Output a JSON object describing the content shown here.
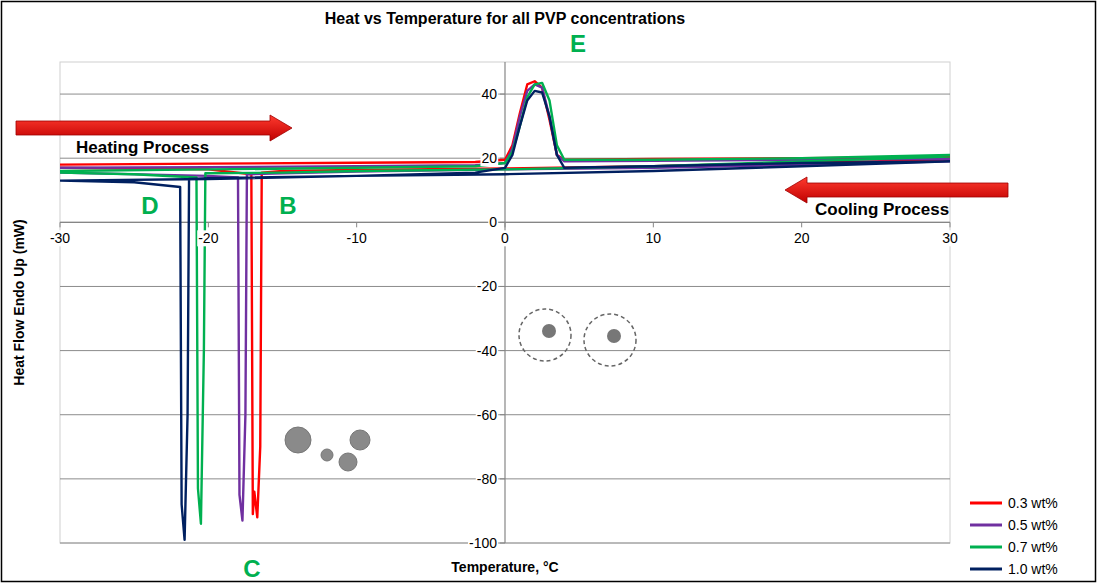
{
  "chart_data": {
    "type": "line",
    "title": "Heat vs Temperature for all PVP concentrations",
    "x_label": "Temperature, °C",
    "y_label": "Heat Flow Endo Up (mW)",
    "annotations": [
      "Heating Process",
      "Cooling Process",
      "B",
      "C",
      "D",
      "E"
    ],
    "xlim": [
      -30,
      30
    ],
    "xticks": [
      -30,
      -20,
      -10,
      0,
      10,
      20,
      30
    ],
    "ylim": [
      -100,
      50
    ],
    "yticks": [
      -100,
      -80,
      -60,
      -40,
      -20,
      0,
      20,
      40
    ],
    "grid": true,
    "legend": "bottom-right",
    "series": [
      {
        "name": "0.3 wt%",
        "color": "#ff0000",
        "x": [
          -30,
          -20,
          -10,
          -2,
          0,
          0.5,
          1,
          1.5,
          2,
          2.5,
          3,
          3.5,
          4,
          10,
          20,
          30,
          null,
          30,
          20,
          10,
          0,
          -10,
          -15,
          -16.4,
          -16.5,
          -16.7,
          -16.9,
          -17.0,
          -17.1,
          -20,
          -30
        ],
        "values": [
          18,
          18.3,
          18.6,
          18.8,
          19.5,
          24,
          34,
          43,
          44,
          42,
          32,
          21,
          19.5,
          19.8,
          20,
          20.3,
          null,
          19.5,
          18.5,
          17.5,
          16.8,
          16.3,
          16,
          15.5,
          -70,
          -92,
          -84,
          -91,
          15,
          16.5,
          17
        ]
      },
      {
        "name": "0.5 wt%",
        "color": "#7030a0",
        "x": [
          -30,
          -20,
          -10,
          -2,
          0,
          0.5,
          1,
          1.5,
          2,
          2.5,
          3,
          3.5,
          4,
          10,
          20,
          30,
          null,
          30,
          20,
          10,
          0,
          -10,
          -15,
          -17.4,
          -17.5,
          -17.7,
          -17.9,
          -18.0,
          -20,
          -30
        ],
        "values": [
          17,
          17.2,
          17.5,
          17.8,
          18.5,
          23,
          33,
          41,
          43,
          42,
          33,
          21,
          19,
          19.2,
          19.5,
          19.8,
          null,
          19,
          18,
          17,
          16.5,
          15.8,
          15.3,
          15,
          -60,
          -93,
          -85,
          14,
          14.5,
          15.5
        ]
      },
      {
        "name": "0.7 wt%",
        "color": "#00b050",
        "x": [
          -30,
          -20,
          -10,
          -2,
          0,
          0.5,
          1,
          1.5,
          2,
          2.5,
          3,
          3.5,
          4,
          10,
          20,
          30,
          null,
          30,
          20,
          10,
          0,
          -10,
          -15,
          -20.2,
          -20.3,
          -20.5,
          -20.7,
          -20.8,
          -25,
          -30
        ],
        "values": [
          16,
          16.5,
          17,
          17.5,
          18.5,
          22,
          30,
          39,
          43,
          43.5,
          38,
          24,
          19.5,
          19.5,
          20,
          21,
          null,
          20.5,
          19,
          17.5,
          16.5,
          16,
          15.5,
          15.3,
          -40,
          -94,
          -83,
          14,
          15,
          15.5
        ]
      },
      {
        "name": "1.0 wt%",
        "color": "#002060",
        "x": [
          -30,
          -20,
          -10,
          -2,
          0,
          0.5,
          1,
          1.5,
          2,
          2.5,
          3,
          3.5,
          4,
          10,
          20,
          30,
          null,
          30,
          20,
          10,
          0,
          -10,
          -20,
          -21.3,
          -21.4,
          -21.6,
          -21.8,
          -21.9,
          -25,
          -30
        ],
        "values": [
          13,
          13.5,
          14.5,
          15.5,
          17,
          21,
          30,
          38,
          41,
          40.5,
          33,
          21,
          17,
          17.5,
          18.5,
          19,
          null,
          19,
          17.5,
          16,
          15,
          14.5,
          13.8,
          13.5,
          -60,
          -99,
          -88,
          11,
          12.5,
          13
        ]
      }
    ]
  }
}
